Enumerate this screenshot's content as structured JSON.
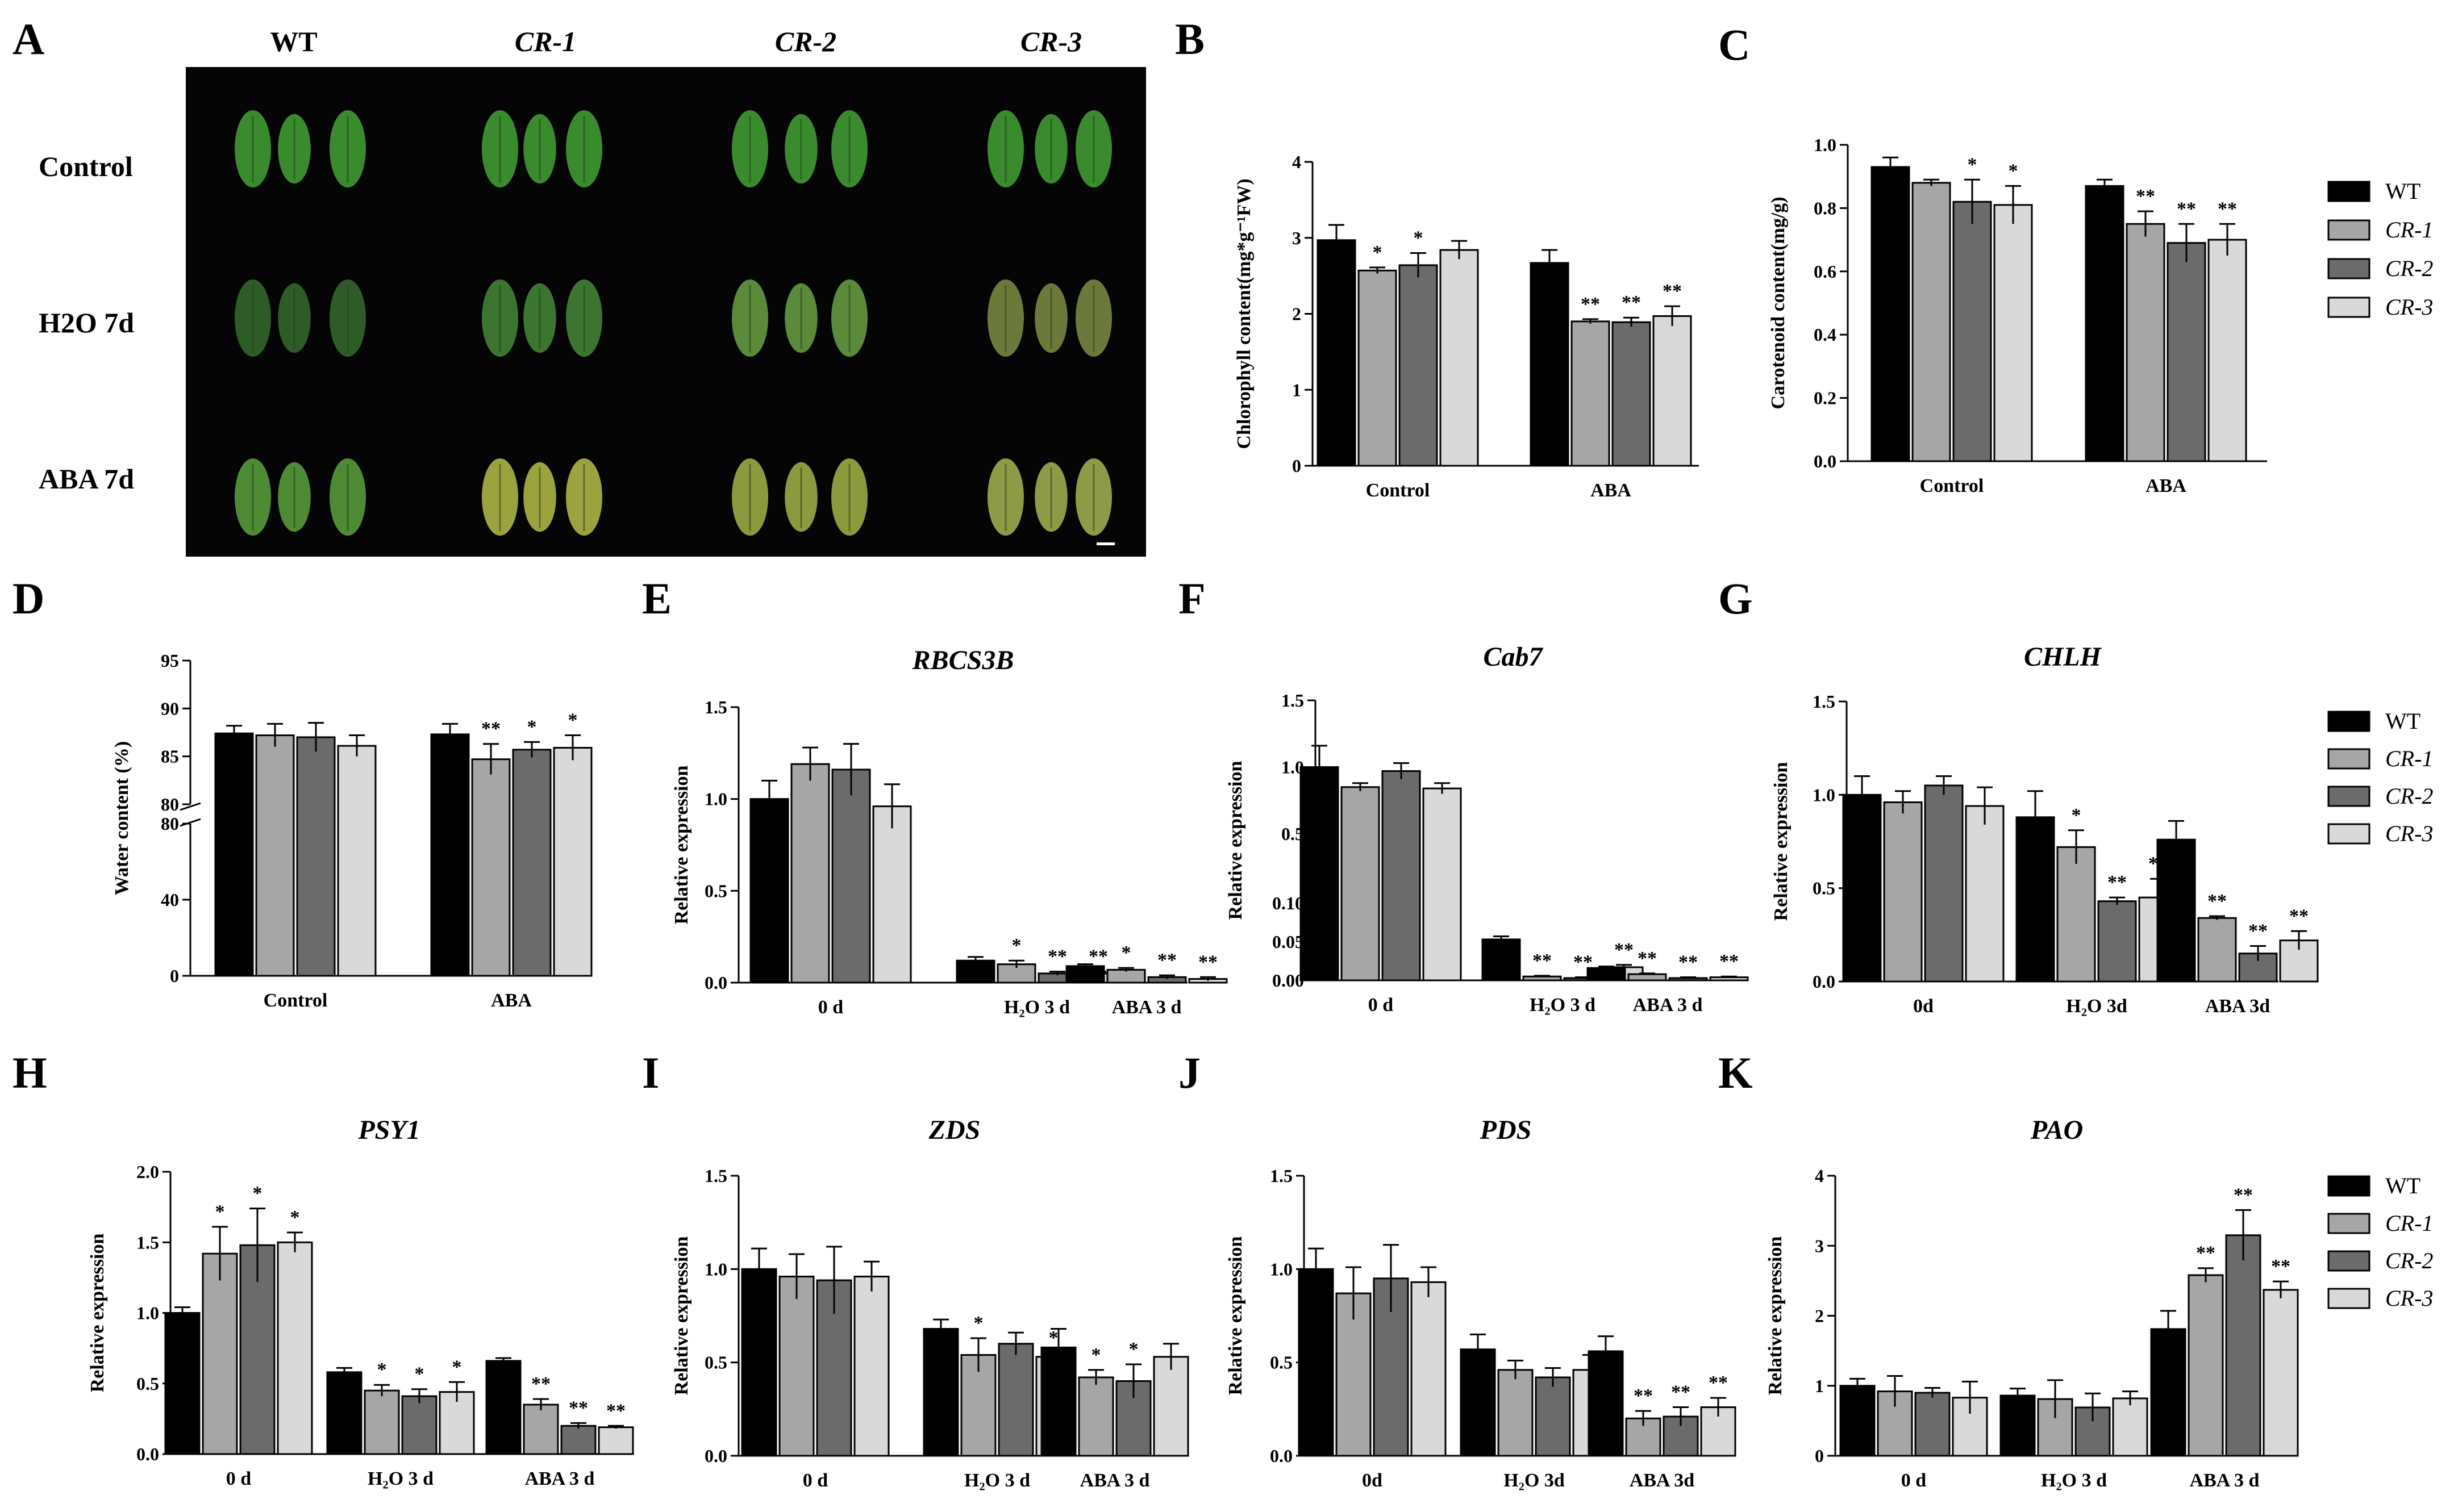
{
  "panel_letters": [
    "A",
    "B",
    "C",
    "D",
    "E",
    "F",
    "G",
    "H",
    "I",
    "J",
    "K"
  ],
  "photo": {
    "columns": [
      "WT",
      "CR-1",
      "CR-2",
      "CR-3"
    ],
    "rows": [
      "Control",
      "H2O 7d",
      "ABA 7d"
    ]
  },
  "legend": {
    "entries": [
      "WT",
      "CR-1",
      "CR-2",
      "CR-3"
    ],
    "colors": [
      "#000000",
      "#a6a6a6",
      "#6b6b6b",
      "#d9d9d9"
    ]
  },
  "chart_data": [
    {
      "id": "B",
      "type": "bar",
      "title": "",
      "ylabel": "Chlorophyll content(mg*g⁻¹FW)",
      "categories": [
        "Control",
        "ABA"
      ],
      "ylim": [
        0,
        4
      ],
      "yticks": [
        "0",
        "1",
        "2",
        "3",
        "4"
      ],
      "series": [
        {
          "name": "WT",
          "values": [
            2.97,
            2.67
          ],
          "err": [
            0.2,
            0.17
          ],
          "sig": [
            "",
            ""
          ]
        },
        {
          "name": "CR-1",
          "values": [
            2.57,
            1.9
          ],
          "err": [
            0.04,
            0.03
          ],
          "sig": [
            "*",
            "**"
          ]
        },
        {
          "name": "CR-2",
          "values": [
            2.64,
            1.89
          ],
          "err": [
            0.16,
            0.06
          ],
          "sig": [
            "*",
            "**"
          ]
        },
        {
          "name": "CR-3",
          "values": [
            2.84,
            1.97
          ],
          "err": [
            0.12,
            0.13
          ],
          "sig": [
            "",
            "**"
          ]
        }
      ]
    },
    {
      "id": "C",
      "type": "bar",
      "title": "",
      "ylabel": "Carotenoid content(mg/g)",
      "categories": [
        "Control",
        "ABA"
      ],
      "ylim": [
        0,
        1.0
      ],
      "yticks": [
        "0.0",
        "0.2",
        "0.4",
        "0.6",
        "0.8",
        "1.0"
      ],
      "series": [
        {
          "name": "WT",
          "values": [
            0.93,
            0.87
          ],
          "err": [
            0.03,
            0.02
          ],
          "sig": [
            "",
            ""
          ]
        },
        {
          "name": "CR-1",
          "values": [
            0.88,
            0.75
          ],
          "err": [
            0.01,
            0.04
          ],
          "sig": [
            "",
            "**"
          ]
        },
        {
          "name": "CR-2",
          "values": [
            0.82,
            0.69
          ],
          "err": [
            0.07,
            0.06
          ],
          "sig": [
            "*",
            "**"
          ]
        },
        {
          "name": "CR-3",
          "values": [
            0.81,
            0.7
          ],
          "err": [
            0.06,
            0.05
          ],
          "sig": [
            "*",
            "**"
          ]
        }
      ]
    },
    {
      "id": "D",
      "type": "bar",
      "title": "",
      "ylabel": "Water content (%)",
      "categories": [
        "Control",
        "ABA"
      ],
      "ylim": [
        0,
        95
      ],
      "yticks": [
        "0",
        "40",
        "80",
        "80",
        "85",
        "90",
        "95"
      ],
      "series": [
        {
          "name": "WT",
          "values": [
            87.4,
            87.3
          ],
          "err": [
            0.8,
            1.1
          ],
          "sig": [
            "",
            ""
          ]
        },
        {
          "name": "CR-1",
          "values": [
            87.2,
            84.7
          ],
          "err": [
            1.2,
            1.6
          ],
          "sig": [
            "",
            "**"
          ]
        },
        {
          "name": "CR-2",
          "values": [
            87.0,
            85.7
          ],
          "err": [
            1.5,
            0.8
          ],
          "sig": [
            "",
            "*"
          ]
        },
        {
          "name": "CR-3",
          "values": [
            86.1,
            85.9
          ],
          "err": [
            1.1,
            1.3
          ],
          "sig": [
            "",
            "*"
          ]
        }
      ]
    },
    {
      "id": "E",
      "type": "bar",
      "title": "RBCS3B",
      "ylabel": "Relative expression",
      "categories": [
        "0 d",
        "H₂O 3 d",
        "ABA 3 d"
      ],
      "ylim": [
        0,
        1.5
      ],
      "yticks": [
        "0.0",
        "0.5",
        "1.0",
        "1.5"
      ],
      "series": [
        {
          "name": "WT",
          "values": [
            1.0,
            0.12,
            0.09
          ],
          "err": [
            0.1,
            0.02,
            0.01
          ],
          "sig": [
            "",
            "",
            ""
          ]
        },
        {
          "name": "CR-1",
          "values": [
            1.19,
            0.1,
            0.07
          ],
          "err": [
            0.09,
            0.02,
            0.01
          ],
          "sig": [
            "",
            "*",
            "*"
          ]
        },
        {
          "name": "CR-2",
          "values": [
            1.16,
            0.05,
            0.03
          ],
          "err": [
            0.14,
            0.01,
            0.01
          ],
          "sig": [
            "",
            "**",
            "**"
          ]
        },
        {
          "name": "CR-3",
          "values": [
            0.96,
            0.05,
            0.02
          ],
          "err": [
            0.12,
            0.01,
            0.01
          ],
          "sig": [
            "",
            "**",
            "**"
          ]
        }
      ]
    },
    {
      "id": "F",
      "type": "bar",
      "title": "Cab7",
      "ylabel": "Relative expression",
      "categories": [
        "0 d",
        "H₂O 3 d",
        "ABA 3 d"
      ],
      "ylim": [
        0,
        1.5
      ],
      "yticks": [
        "0.00",
        "0.05",
        "0.10",
        "0.5",
        "1.0",
        "1.5"
      ],
      "series": [
        {
          "name": "WT",
          "values": [
            1.0,
            0.053,
            0.016
          ],
          "err": [
            0.16,
            0.004,
            0.002
          ],
          "sig": [
            "",
            "",
            ""
          ]
        },
        {
          "name": "CR-1",
          "values": [
            0.85,
            0.005,
            0.008
          ],
          "err": [
            0.03,
            0.001,
            0.001
          ],
          "sig": [
            "",
            "**",
            "**"
          ]
        },
        {
          "name": "CR-2",
          "values": [
            0.97,
            0.003,
            0.003
          ],
          "err": [
            0.06,
            0.001,
            0.001
          ],
          "sig": [
            "",
            "**",
            "**"
          ]
        },
        {
          "name": "CR-3",
          "values": [
            0.84,
            0.017,
            0.004
          ],
          "err": [
            0.04,
            0.003,
            0.001
          ],
          "sig": [
            "",
            "**",
            "**"
          ]
        }
      ]
    },
    {
      "id": "G",
      "type": "bar",
      "title": "CHLH",
      "ylabel": "Relative expression",
      "categories": [
        "0d",
        "H₂O 3d",
        "ABA 3d"
      ],
      "ylim": [
        0,
        1.5
      ],
      "yticks": [
        "0.0",
        "0.5",
        "1.0",
        "1.5"
      ],
      "series": [
        {
          "name": "WT",
          "values": [
            1.0,
            0.88,
            0.76
          ],
          "err": [
            0.1,
            0.14,
            0.1
          ],
          "sig": [
            "",
            "",
            ""
          ]
        },
        {
          "name": "CR-1",
          "values": [
            0.96,
            0.72,
            0.34
          ],
          "err": [
            0.06,
            0.09,
            0.01
          ],
          "sig": [
            "",
            "*",
            "**"
          ]
        },
        {
          "name": "CR-2",
          "values": [
            1.05,
            0.43,
            0.15
          ],
          "err": [
            0.05,
            0.02,
            0.04
          ],
          "sig": [
            "",
            "**",
            "**"
          ]
        },
        {
          "name": "CR-3",
          "values": [
            0.94,
            0.45,
            0.22
          ],
          "err": [
            0.1,
            0.1,
            0.05
          ],
          "sig": [
            "",
            "**",
            "**"
          ]
        }
      ]
    },
    {
      "id": "H",
      "type": "bar",
      "title": "PSY1",
      "ylabel": "Relative expression",
      "categories": [
        "0 d",
        "H₂O 3 d",
        "ABA 3 d"
      ],
      "ylim": [
        0,
        2.0
      ],
      "yticks": [
        "0.0",
        "0.5",
        "1.0",
        "1.5",
        "2.0"
      ],
      "series": [
        {
          "name": "WT",
          "values": [
            1.0,
            0.58,
            0.66
          ],
          "err": [
            0.04,
            0.03,
            0.02
          ],
          "sig": [
            "",
            "",
            ""
          ]
        },
        {
          "name": "CR-1",
          "values": [
            1.42,
            0.45,
            0.35
          ],
          "err": [
            0.19,
            0.04,
            0.04
          ],
          "sig": [
            "*",
            "*",
            "**"
          ]
        },
        {
          "name": "CR-2",
          "values": [
            1.48,
            0.41,
            0.2
          ],
          "err": [
            0.26,
            0.05,
            0.02
          ],
          "sig": [
            "*",
            "*",
            "**"
          ]
        },
        {
          "name": "CR-3",
          "values": [
            1.5,
            0.44,
            0.19
          ],
          "err": [
            0.07,
            0.07,
            0.01
          ],
          "sig": [
            "*",
            "*",
            "**"
          ]
        }
      ]
    },
    {
      "id": "I",
      "type": "bar",
      "title": "ZDS",
      "ylabel": "Relative expression",
      "categories": [
        "0 d",
        "H₂O 3 d",
        "ABA 3 d"
      ],
      "ylim": [
        0,
        1.5
      ],
      "yticks": [
        "0.0",
        "0.5",
        "1.0",
        "1.5"
      ],
      "series": [
        {
          "name": "WT",
          "values": [
            1.0,
            0.68,
            0.58
          ],
          "err": [
            0.11,
            0.05,
            0.1
          ],
          "sig": [
            "",
            "",
            ""
          ]
        },
        {
          "name": "CR-1",
          "values": [
            0.96,
            0.54,
            0.42
          ],
          "err": [
            0.12,
            0.09,
            0.04
          ],
          "sig": [
            "",
            "*",
            "*"
          ]
        },
        {
          "name": "CR-2",
          "values": [
            0.94,
            0.6,
            0.4
          ],
          "err": [
            0.18,
            0.06,
            0.09
          ],
          "sig": [
            "",
            "",
            "*"
          ]
        },
        {
          "name": "CR-3",
          "values": [
            0.96,
            0.53,
            0.53
          ],
          "err": [
            0.08,
            0.02,
            0.07
          ],
          "sig": [
            "",
            "*",
            ""
          ]
        }
      ]
    },
    {
      "id": "J",
      "type": "bar",
      "title": "PDS",
      "ylabel": "Relative expression",
      "categories": [
        "0d",
        "H₂O 3d",
        "ABA 3d"
      ],
      "ylim": [
        0,
        1.5
      ],
      "yticks": [
        "0.0",
        "0.5",
        "1.0",
        "1.5"
      ],
      "series": [
        {
          "name": "WT",
          "values": [
            1.0,
            0.57,
            0.56
          ],
          "err": [
            0.11,
            0.08,
            0.08
          ],
          "sig": [
            "",
            "",
            ""
          ]
        },
        {
          "name": "CR-1",
          "values": [
            0.87,
            0.46,
            0.2
          ],
          "err": [
            0.14,
            0.05,
            0.04
          ],
          "sig": [
            "",
            "",
            "**"
          ]
        },
        {
          "name": "CR-2",
          "values": [
            0.95,
            0.42,
            0.21
          ],
          "err": [
            0.18,
            0.05,
            0.05
          ],
          "sig": [
            "",
            "",
            "**"
          ]
        },
        {
          "name": "CR-3",
          "values": [
            0.93,
            0.46,
            0.26
          ],
          "err": [
            0.08,
            0.08,
            0.05
          ],
          "sig": [
            "",
            "",
            "**"
          ]
        }
      ]
    },
    {
      "id": "K",
      "type": "bar",
      "title": "PAO",
      "ylabel": "Relative expression",
      "categories": [
        "0 d",
        "H₂O 3 d",
        "ABA 3 d"
      ],
      "ylim": [
        0,
        4
      ],
      "yticks": [
        "0",
        "1",
        "2",
        "3",
        "4"
      ],
      "series": [
        {
          "name": "WT",
          "values": [
            1.0,
            0.86,
            1.81
          ],
          "err": [
            0.1,
            0.1,
            0.26
          ],
          "sig": [
            "",
            "",
            ""
          ]
        },
        {
          "name": "CR-1",
          "values": [
            0.92,
            0.81,
            2.58
          ],
          "err": [
            0.22,
            0.27,
            0.1
          ],
          "sig": [
            "",
            "",
            "**"
          ]
        },
        {
          "name": "CR-2",
          "values": [
            0.9,
            0.69,
            3.15
          ],
          "err": [
            0.07,
            0.2,
            0.36
          ],
          "sig": [
            "",
            "",
            "**"
          ]
        },
        {
          "name": "CR-3",
          "values": [
            0.83,
            0.82,
            2.37
          ],
          "err": [
            0.23,
            0.1,
            0.12
          ],
          "sig": [
            "",
            "",
            "**"
          ]
        }
      ]
    }
  ]
}
